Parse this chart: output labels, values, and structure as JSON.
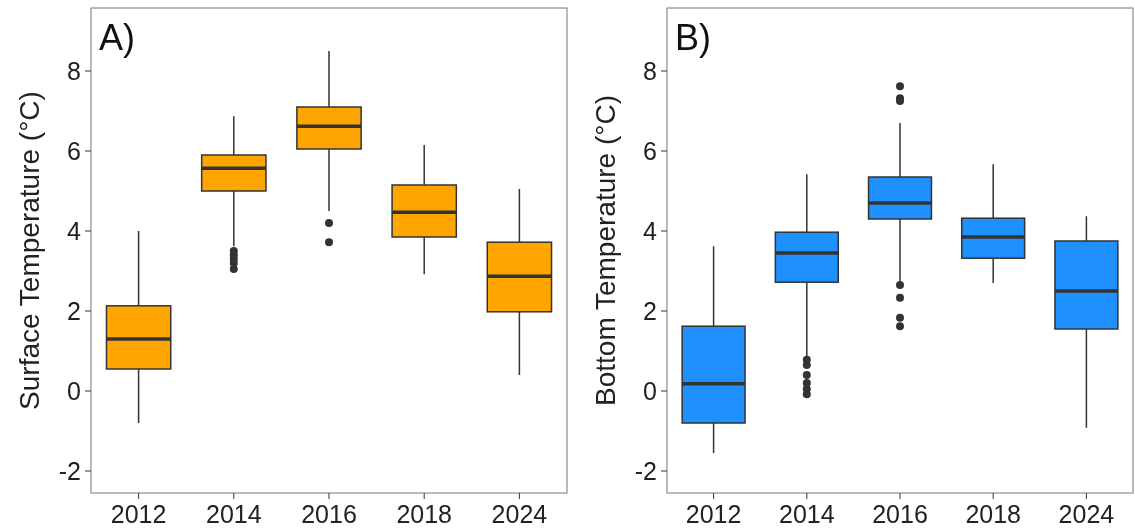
{
  "chart_data": [
    {
      "type": "box",
      "title": "A)",
      "ylabel": "Surface Temperature (°C)",
      "categories": [
        "2012",
        "2014",
        "2016",
        "2018",
        "2024"
      ],
      "color": "#ffa500",
      "ylim": [
        -2.55,
        9.575
      ],
      "yticks": [
        -2,
        0,
        2,
        4,
        6,
        8
      ],
      "grid": false,
      "boxes": [
        {
          "low": -0.8,
          "q1": 0.55,
          "median": 1.3,
          "q3": 2.13,
          "high": 4.0
        },
        {
          "low": 3.62,
          "q1": 5.0,
          "median": 5.57,
          "q3": 5.9,
          "high": 6.87,
          "outliers": [
            3.5,
            3.4,
            3.3,
            3.2,
            3.05
          ]
        },
        {
          "low": 4.5,
          "q1": 6.05,
          "median": 6.62,
          "q3": 7.1,
          "high": 8.5,
          "outliers": [
            4.2,
            3.72
          ]
        },
        {
          "low": 2.92,
          "q1": 3.85,
          "median": 4.47,
          "q3": 5.15,
          "high": 6.15
        },
        {
          "low": 0.4,
          "q1": 1.98,
          "median": 2.87,
          "q3": 3.72,
          "high": 5.05
        }
      ]
    },
    {
      "type": "box",
      "title": "B)",
      "ylabel": "Bottom Temperature (°C)",
      "categories": [
        "2012",
        "2014",
        "2016",
        "2018",
        "2024"
      ],
      "color": "#1e90ff",
      "ylim": [
        -2.55,
        9.575
      ],
      "yticks": [
        -2,
        0,
        2,
        4,
        6,
        8
      ],
      "grid": false,
      "boxes": [
        {
          "low": -1.55,
          "q1": -0.8,
          "median": 0.18,
          "q3": 1.62,
          "high": 3.62
        },
        {
          "low": 0.87,
          "q1": 2.72,
          "median": 3.45,
          "q3": 3.97,
          "high": 5.42,
          "outliers": [
            0.78,
            0.65,
            0.4,
            0.2,
            0.05,
            -0.08
          ]
        },
        {
          "low": 2.75,
          "q1": 4.3,
          "median": 4.7,
          "q3": 5.35,
          "high": 6.7,
          "outliers": [
            7.62,
            7.32,
            7.25,
            2.65,
            2.33,
            1.83,
            1.62
          ]
        },
        {
          "low": 2.7,
          "q1": 3.32,
          "median": 3.85,
          "q3": 4.32,
          "high": 5.67
        },
        {
          "low": -0.92,
          "q1": 1.55,
          "median": 2.5,
          "q3": 3.75,
          "high": 4.37
        }
      ]
    }
  ]
}
